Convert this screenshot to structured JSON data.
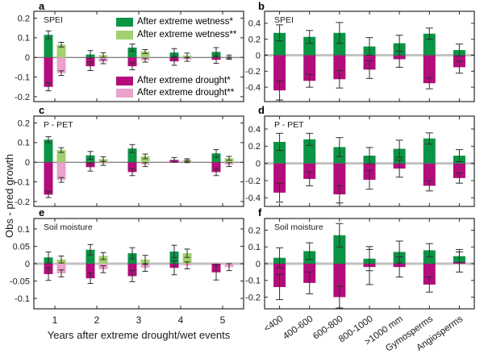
{
  "figure": {
    "y_axis_title": "Obs - pred growth",
    "x_axis_title": "Years after extreme drought/wet events",
    "background": "#ffffff",
    "axis_color": "#2a2a2a",
    "tick_label_color": "#1a1a1a",
    "error_bar_color": "#2e2e2e",
    "zero_line_thin_color": "#555555",
    "zero_line_thick_color": "#c2c2c2"
  },
  "legend": {
    "items": [
      {
        "label": "After extreme wetness*",
        "color": "#0b9444"
      },
      {
        "label": "After extreme wetness**",
        "color": "#a1d16e"
      },
      {
        "label": "After extreme drought*",
        "color": "#b20d7b"
      },
      {
        "label": "After extreme drought**",
        "color": "#eaa2cc"
      }
    ]
  },
  "chart_data": {
    "type": "bar",
    "grid": "off",
    "legend_position": "inside panel a",
    "panels": [
      {
        "id": "a",
        "letter": "a",
        "title": "SPEI",
        "categories": [
          "1",
          "2",
          "3",
          "4",
          "5"
        ],
        "ylim": [
          -0.225,
          0.235
        ],
        "yticks": [
          -0.2,
          -0.1,
          0,
          0.1,
          0.2
        ],
        "ytick_labels": [
          "-0.2",
          "-0.1",
          "0",
          "0.1",
          "0.2"
        ],
        "x_labels": "none",
        "slots": 2,
        "zero_line": "thin",
        "series": [
          {
            "name": "After extreme wetness*",
            "color": "#0b9444",
            "slot": 0,
            "values": [
              0.115,
              0.015,
              0.05,
              0.025,
              0.028
            ],
            "errors": [
              0.02,
              0.02,
              0.018,
              0.02,
              0.022
            ]
          },
          {
            "name": "After extreme drought*",
            "color": "#b20d7b",
            "slot": 0,
            "values": [
              -0.15,
              -0.045,
              -0.045,
              -0.02,
              -0.012
            ],
            "errors": [
              0.02,
              0.022,
              0.018,
              0.02,
              0.018
            ]
          },
          {
            "name": "After extreme wetness**",
            "color": "#a1d16e",
            "slot": 1,
            "values": [
              0.065,
              0.012,
              0.03,
              0.01,
              0.004
            ],
            "errors": [
              0.012,
              0.012,
              0.01,
              0.012,
              0.008
            ]
          },
          {
            "name": "After extreme drought**",
            "color": "#eaa2cc",
            "slot": 1,
            "values": [
              -0.08,
              -0.022,
              -0.014,
              -0.01,
              -0.004
            ],
            "errors": [
              0.012,
              0.01,
              0.01,
              0.01,
              0.006
            ]
          }
        ]
      },
      {
        "id": "b",
        "letter": "b",
        "title": "SPEI",
        "categories": [
          "<400",
          "400-600",
          "600-800",
          "800-1000",
          ">1000 mm",
          "Gymosperms",
          "Angiosperms"
        ],
        "ylim": [
          -0.58,
          0.55
        ],
        "yticks": [
          -0.4,
          -0.2,
          0,
          0.2,
          0.4
        ],
        "ytick_labels": [
          "-0.4",
          "-0.2",
          "0",
          "0.2",
          "0.4"
        ],
        "x_labels": "none",
        "slots": 1,
        "zero_line": "thick",
        "series": [
          {
            "name": "After extreme wetness*",
            "color": "#0b9444",
            "slot": 0,
            "values": [
              0.28,
              0.23,
              0.28,
              0.11,
              0.15,
              0.27,
              0.065
            ],
            "errors": [
              0.1,
              0.08,
              0.13,
              0.11,
              0.1,
              0.07,
              0.075
            ]
          },
          {
            "name": "After extreme drought*",
            "color": "#b20d7b",
            "slot": 0,
            "values": [
              -0.44,
              -0.32,
              -0.3,
              -0.18,
              -0.05,
              -0.35,
              -0.15
            ],
            "errors": [
              0.12,
              0.08,
              0.11,
              0.11,
              0.1,
              0.07,
              0.075
            ]
          }
        ]
      },
      {
        "id": "c",
        "letter": "c",
        "title": "P - PET",
        "categories": [
          "1",
          "2",
          "3",
          "4",
          "5"
        ],
        "ylim": [
          -0.225,
          0.235
        ],
        "yticks": [
          -0.2,
          -0.1,
          0,
          0.1,
          0.2
        ],
        "ytick_labels": [
          "-0.2",
          "-0.1",
          "0",
          "0.1",
          "0.2"
        ],
        "x_labels": "none",
        "slots": 2,
        "zero_line": "thin",
        "series": [
          {
            "name": "After extreme wetness*",
            "color": "#0b9444",
            "slot": 0,
            "values": [
              0.115,
              0.035,
              0.07,
              0,
              0.045
            ],
            "errors": [
              0.015,
              0.02,
              0.02,
              0,
              0.02
            ]
          },
          {
            "name": "After extreme drought*",
            "color": "#b20d7b",
            "slot": 0,
            "values": [
              -0.165,
              -0.025,
              -0.05,
              0.012,
              -0.05
            ],
            "errors": [
              0.015,
              0.02,
              0.018,
              0.012,
              0.018
            ]
          },
          {
            "name": "After extreme wetness**",
            "color": "#a1d16e",
            "slot": 1,
            "values": [
              0.062,
              0.016,
              0.03,
              0.01,
              0.02
            ],
            "errors": [
              0.012,
              0.012,
              0.012,
              0.008,
              0.01
            ]
          },
          {
            "name": "After extreme drought**",
            "color": "#eaa2cc",
            "slot": 1,
            "values": [
              -0.09,
              -0.006,
              -0.012,
              0.004,
              -0.012
            ],
            "errors": [
              0.012,
              0.01,
              0.01,
              0.006,
              0.01
            ]
          }
        ]
      },
      {
        "id": "d",
        "letter": "d",
        "title": "P - PET",
        "categories": [
          "<400",
          "400-600",
          "600-800",
          "800-1000",
          ">1000 mm",
          "Gymosperms",
          "Angiosperms"
        ],
        "ylim": [
          -0.5,
          0.55
        ],
        "yticks": [
          -0.4,
          -0.2,
          0,
          0.2,
          0.4
        ],
        "ytick_labels": [
          "-0.4",
          "-0.2",
          "0",
          "0.2",
          "0.4"
        ],
        "x_labels": "none",
        "slots": 1,
        "zero_line": "thick",
        "series": [
          {
            "name": "After extreme wetness*",
            "color": "#0b9444",
            "slot": 0,
            "values": [
              0.25,
              0.28,
              0.19,
              0.09,
              0.17,
              0.29,
              0.09
            ],
            "errors": [
              0.1,
              0.07,
              0.11,
              0.095,
              0.1,
              0.065,
              0.07
            ]
          },
          {
            "name": "After extreme drought*",
            "color": "#b20d7b",
            "slot": 0,
            "values": [
              -0.34,
              -0.18,
              -0.36,
              -0.19,
              -0.06,
              -0.26,
              -0.17
            ],
            "errors": [
              0.11,
              0.08,
              0.1,
              0.11,
              0.1,
              0.06,
              0.06
            ]
          }
        ]
      },
      {
        "id": "e",
        "letter": "e",
        "title": "Soil moisture",
        "categories": [
          "1",
          "2",
          "3",
          "4",
          "5"
        ],
        "ylim": [
          -0.13,
          0.13
        ],
        "yticks": [
          -0.1,
          -0.05,
          0,
          0.05,
          0.1
        ],
        "ytick_labels": [
          "-0.1",
          "-0.05",
          "0",
          "0.05",
          "0.1"
        ],
        "x_labels": "plain",
        "slots": 2,
        "zero_line": "thick",
        "series": [
          {
            "name": "After extreme wetness*",
            "color": "#0b9444",
            "slot": 0,
            "values": [
              0.018,
              0.04,
              0.03,
              0.035,
              0
            ],
            "errors": [
              0.016,
              0.015,
              0.016,
              0.018,
              0
            ]
          },
          {
            "name": "After extreme drought*",
            "color": "#b20d7b",
            "slot": 0,
            "values": [
              -0.03,
              -0.042,
              -0.036,
              -0.012,
              -0.025
            ],
            "errors": [
              0.018,
              0.015,
              0.016,
              0.02,
              0.022
            ]
          },
          {
            "name": "After extreme wetness**",
            "color": "#a1d16e",
            "slot": 1,
            "values": [
              0.012,
              0.022,
              0.012,
              0.03,
              0
            ],
            "errors": [
              0.01,
              0.01,
              0.012,
              0.012,
              0
            ]
          },
          {
            "name": "After extreme drought**",
            "color": "#eaa2cc",
            "slot": 1,
            "values": [
              -0.028,
              -0.016,
              -0.012,
              -0.005,
              -0.01
            ],
            "errors": [
              0.01,
              0.01,
              0.01,
              0.01,
              0.01
            ]
          }
        ]
      },
      {
        "id": "f",
        "letter": "f",
        "title": "Soil moisture",
        "categories": [
          "<400",
          "400-600",
          "600-800",
          "800-1000",
          ">1000 mm",
          "Gymosperms",
          "Angiosperms"
        ],
        "ylim": [
          -0.27,
          0.27
        ],
        "yticks": [
          -0.2,
          -0.1,
          0,
          0.1,
          0.2
        ],
        "ytick_labels": [
          "-0.2",
          "-0.1",
          "0",
          "0.1",
          "0.2"
        ],
        "x_labels": "rotated",
        "slots": 1,
        "zero_line": "thick",
        "series": [
          {
            "name": "After extreme wetness*",
            "color": "#0b9444",
            "slot": 0,
            "values": [
              0.035,
              0.075,
              0.17,
              0.03,
              0.07,
              0.08,
              0.045
            ],
            "errors": [
              0.06,
              0.05,
              0.07,
              0.072,
              0.065,
              0.04,
              0.04
            ]
          },
          {
            "name": "After extreme drought*",
            "color": "#b20d7b",
            "slot": 0,
            "values": [
              -0.14,
              -0.115,
              -0.2,
              -0.02,
              -0.02,
              -0.125,
              0.01
            ],
            "errors": [
              0.075,
              0.065,
              0.065,
              0.105,
              0.06,
              0.045,
              0.06
            ]
          }
        ]
      }
    ]
  }
}
